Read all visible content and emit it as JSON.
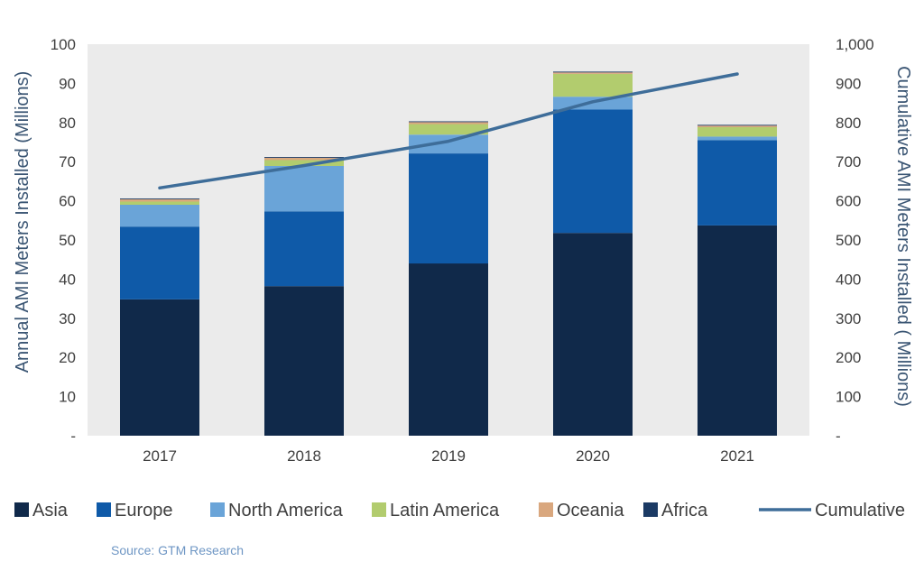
{
  "chart_data": {
    "type": "bar",
    "stacked": true,
    "categories": [
      "2017",
      "2018",
      "2019",
      "2020",
      "2021"
    ],
    "series": [
      {
        "name": "Asia",
        "color": "#10294a",
        "values": [
          34.8,
          38.2,
          44.0,
          51.8,
          53.7
        ]
      },
      {
        "name": "Europe",
        "color": "#0f5aa8",
        "values": [
          18.6,
          19.1,
          28.1,
          31.5,
          21.8
        ]
      },
      {
        "name": "North America",
        "color": "#6aa4d8",
        "values": [
          5.6,
          11.6,
          4.8,
          3.3,
          0.9
        ]
      },
      {
        "name": "Latin America",
        "color": "#b2cc6e",
        "values": [
          0.8,
          1.5,
          2.7,
          5.8,
          2.4
        ]
      },
      {
        "name": "Oceania",
        "color": "#d9a77e",
        "values": [
          0.6,
          0.6,
          0.5,
          0.4,
          0.4
        ]
      },
      {
        "name": "Africa",
        "color": "#1b3a64",
        "values": [
          0.2,
          0.2,
          0.2,
          0.2,
          0.2
        ]
      }
    ],
    "line_series": {
      "name": "Cumulative",
      "color": "#3e6d99",
      "axis": "right",
      "values": [
        633,
        690,
        752,
        853,
        924
      ]
    },
    "ylabel": "Annual AMI Meters Installed (Millions)",
    "y2label": "Cumulative AMI Meters Installed ( Millions)",
    "ylim": [
      0,
      100
    ],
    "y2lim": [
      0,
      1000
    ],
    "yticks": [
      "-",
      "10",
      "20",
      "30",
      "40",
      "50",
      "60",
      "70",
      "80",
      "90",
      "100"
    ],
    "y2ticks": [
      "-",
      "100",
      "200",
      "300",
      "400",
      "500",
      "600",
      "700",
      "800",
      "900",
      "1,000"
    ],
    "legend_position": "bottom",
    "plot_background": "#ebebeb"
  },
  "source": "Source: GTM Research"
}
